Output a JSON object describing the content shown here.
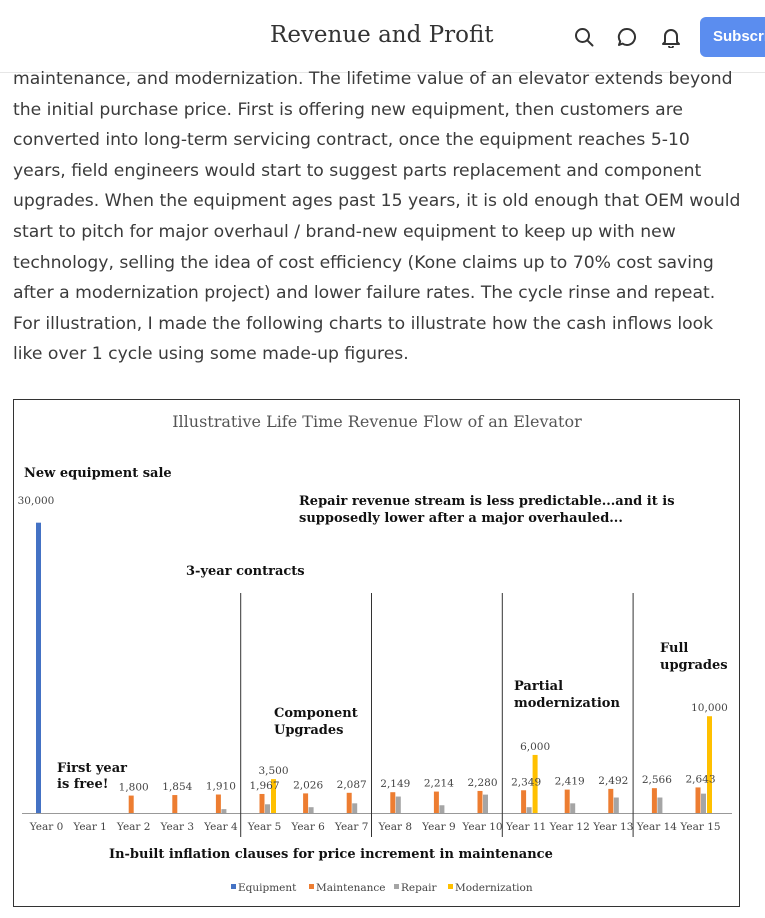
{
  "header": {
    "title": "Revenue and Profit",
    "subscribe_label": "Subscrib",
    "icons": [
      "search-icon",
      "comment-icon",
      "bell-icon"
    ]
  },
  "article": {
    "paragraph": "maintenance, and modernization. The lifetime value of an elevator extends beyond the initial purchase price. First is offering new equipment, then customers are converted into long-term servicing contract, once the equipment reaches 5-10 years, field engineers would start to suggest parts replacement and component upgrades. When the equipment ages past 15 years, it is old enough that OEM would start to pitch for major overhaul / brand-new equipment to keep up with new technology, selling the idea of cost efficiency (Kone claims up to 70% cost saving after a modernization project) and lower failure rates. The cycle rinse and repeat. For illustration, I made the following charts to illustrate how the cash inflows look like over 1 cycle using some made-up figures."
  },
  "chart_data": {
    "type": "bar",
    "title": "Illustrative Life Time Revenue Flow of an Elevator",
    "categories": [
      "Year 0",
      "Year 1",
      "Year 2",
      "Year 3",
      "Year 4",
      "Year 5",
      "Year 6",
      "Year 7",
      "Year 8",
      "Year 9",
      "Year 10",
      "Year 11",
      "Year 12",
      "Year 13",
      "Year 14",
      "Year 15"
    ],
    "series": [
      {
        "name": "Equipment",
        "color": "#4472c4",
        "values": [
          30000,
          0,
          0,
          0,
          0,
          0,
          0,
          0,
          0,
          0,
          0,
          0,
          0,
          0,
          0,
          0
        ]
      },
      {
        "name": "Maintenance",
        "color": "#ed7d31",
        "values": [
          0,
          0,
          1800,
          1854,
          1910,
          1967,
          2026,
          2087,
          2149,
          2214,
          2280,
          2349,
          2419,
          2492,
          2566,
          2643
        ]
      },
      {
        "name": "Repair",
        "color": "#a5a5a5",
        "values": [
          0,
          0,
          0,
          0,
          400,
          900,
          600,
          1000,
          1700,
          800,
          1900,
          600,
          1000,
          1600,
          1600,
          2000
        ]
      },
      {
        "name": "Modernization",
        "color": "#ffc000",
        "values": [
          0,
          0,
          0,
          0,
          0,
          3500,
          0,
          0,
          0,
          0,
          0,
          6000,
          0,
          0,
          0,
          10000
        ]
      }
    ],
    "value_labels": {
      "equipment_year0": "30,000",
      "maintenance": [
        "",
        "",
        "1,800",
        "1,854",
        "1,910",
        "1,967",
        "2,026",
        "2,087",
        "2,149",
        "2,214",
        "2,280",
        "2,349",
        "2,419",
        "2,492",
        "2,566",
        "2,643"
      ],
      "modernization": {
        "5": "3,500",
        "11": "6,000",
        "15": "10,000"
      }
    },
    "ylim": [
      0,
      31000
    ],
    "legend_position": "bottom",
    "annotations": {
      "new_equipment": "New equipment sale",
      "repair_line1": "Repair revenue stream is less predictable...and it is",
      "repair_line2": "supposedly lower after a major overhauled...",
      "contracts": "3-year contracts",
      "component_1": "Component",
      "component_2": "Upgrades",
      "partial_1": "Partial",
      "partial_2": "modernization",
      "full_1": "Full",
      "full_2": "upgrades",
      "first_year_1": "First year",
      "first_year_2": "is free!",
      "inflation": "In-built inflation clauses for price increment in maintenance"
    },
    "divider_after_years": [
      4,
      7,
      10,
      13
    ]
  }
}
